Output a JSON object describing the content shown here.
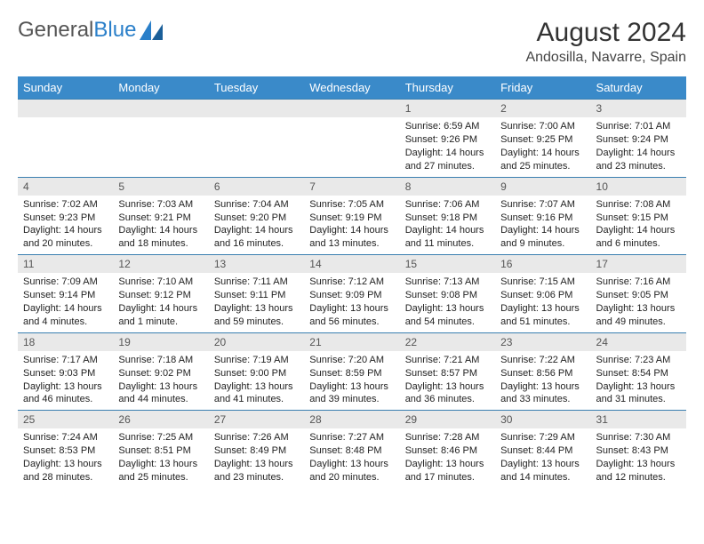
{
  "brand": {
    "part1": "General",
    "part2": "Blue"
  },
  "title": "August 2024",
  "location": "Andosilla, Navarre, Spain",
  "colors": {
    "header_bg": "#3a8ac9",
    "header_text": "#ffffff",
    "daynum_bg": "#e9e9e9",
    "border": "#3a7fb0",
    "brand_gray": "#555555",
    "brand_blue": "#2a7fc9"
  },
  "weekdays": [
    "Sunday",
    "Monday",
    "Tuesday",
    "Wednesday",
    "Thursday",
    "Friday",
    "Saturday"
  ],
  "first_weekday_index": 4,
  "days": [
    {
      "n": 1,
      "sunrise": "6:59 AM",
      "sunset": "9:26 PM",
      "daylight": "14 hours and 27 minutes."
    },
    {
      "n": 2,
      "sunrise": "7:00 AM",
      "sunset": "9:25 PM",
      "daylight": "14 hours and 25 minutes."
    },
    {
      "n": 3,
      "sunrise": "7:01 AM",
      "sunset": "9:24 PM",
      "daylight": "14 hours and 23 minutes."
    },
    {
      "n": 4,
      "sunrise": "7:02 AM",
      "sunset": "9:23 PM",
      "daylight": "14 hours and 20 minutes."
    },
    {
      "n": 5,
      "sunrise": "7:03 AM",
      "sunset": "9:21 PM",
      "daylight": "14 hours and 18 minutes."
    },
    {
      "n": 6,
      "sunrise": "7:04 AM",
      "sunset": "9:20 PM",
      "daylight": "14 hours and 16 minutes."
    },
    {
      "n": 7,
      "sunrise": "7:05 AM",
      "sunset": "9:19 PM",
      "daylight": "14 hours and 13 minutes."
    },
    {
      "n": 8,
      "sunrise": "7:06 AM",
      "sunset": "9:18 PM",
      "daylight": "14 hours and 11 minutes."
    },
    {
      "n": 9,
      "sunrise": "7:07 AM",
      "sunset": "9:16 PM",
      "daylight": "14 hours and 9 minutes."
    },
    {
      "n": 10,
      "sunrise": "7:08 AM",
      "sunset": "9:15 PM",
      "daylight": "14 hours and 6 minutes."
    },
    {
      "n": 11,
      "sunrise": "7:09 AM",
      "sunset": "9:14 PM",
      "daylight": "14 hours and 4 minutes."
    },
    {
      "n": 12,
      "sunrise": "7:10 AM",
      "sunset": "9:12 PM",
      "daylight": "14 hours and 1 minute."
    },
    {
      "n": 13,
      "sunrise": "7:11 AM",
      "sunset": "9:11 PM",
      "daylight": "13 hours and 59 minutes."
    },
    {
      "n": 14,
      "sunrise": "7:12 AM",
      "sunset": "9:09 PM",
      "daylight": "13 hours and 56 minutes."
    },
    {
      "n": 15,
      "sunrise": "7:13 AM",
      "sunset": "9:08 PM",
      "daylight": "13 hours and 54 minutes."
    },
    {
      "n": 16,
      "sunrise": "7:15 AM",
      "sunset": "9:06 PM",
      "daylight": "13 hours and 51 minutes."
    },
    {
      "n": 17,
      "sunrise": "7:16 AM",
      "sunset": "9:05 PM",
      "daylight": "13 hours and 49 minutes."
    },
    {
      "n": 18,
      "sunrise": "7:17 AM",
      "sunset": "9:03 PM",
      "daylight": "13 hours and 46 minutes."
    },
    {
      "n": 19,
      "sunrise": "7:18 AM",
      "sunset": "9:02 PM",
      "daylight": "13 hours and 44 minutes."
    },
    {
      "n": 20,
      "sunrise": "7:19 AM",
      "sunset": "9:00 PM",
      "daylight": "13 hours and 41 minutes."
    },
    {
      "n": 21,
      "sunrise": "7:20 AM",
      "sunset": "8:59 PM",
      "daylight": "13 hours and 39 minutes."
    },
    {
      "n": 22,
      "sunrise": "7:21 AM",
      "sunset": "8:57 PM",
      "daylight": "13 hours and 36 minutes."
    },
    {
      "n": 23,
      "sunrise": "7:22 AM",
      "sunset": "8:56 PM",
      "daylight": "13 hours and 33 minutes."
    },
    {
      "n": 24,
      "sunrise": "7:23 AM",
      "sunset": "8:54 PM",
      "daylight": "13 hours and 31 minutes."
    },
    {
      "n": 25,
      "sunrise": "7:24 AM",
      "sunset": "8:53 PM",
      "daylight": "13 hours and 28 minutes."
    },
    {
      "n": 26,
      "sunrise": "7:25 AM",
      "sunset": "8:51 PM",
      "daylight": "13 hours and 25 minutes."
    },
    {
      "n": 27,
      "sunrise": "7:26 AM",
      "sunset": "8:49 PM",
      "daylight": "13 hours and 23 minutes."
    },
    {
      "n": 28,
      "sunrise": "7:27 AM",
      "sunset": "8:48 PM",
      "daylight": "13 hours and 20 minutes."
    },
    {
      "n": 29,
      "sunrise": "7:28 AM",
      "sunset": "8:46 PM",
      "daylight": "13 hours and 17 minutes."
    },
    {
      "n": 30,
      "sunrise": "7:29 AM",
      "sunset": "8:44 PM",
      "daylight": "13 hours and 14 minutes."
    },
    {
      "n": 31,
      "sunrise": "7:30 AM",
      "sunset": "8:43 PM",
      "daylight": "13 hours and 12 minutes."
    }
  ],
  "labels": {
    "sunrise": "Sunrise:",
    "sunset": "Sunset:",
    "daylight": "Daylight:"
  }
}
